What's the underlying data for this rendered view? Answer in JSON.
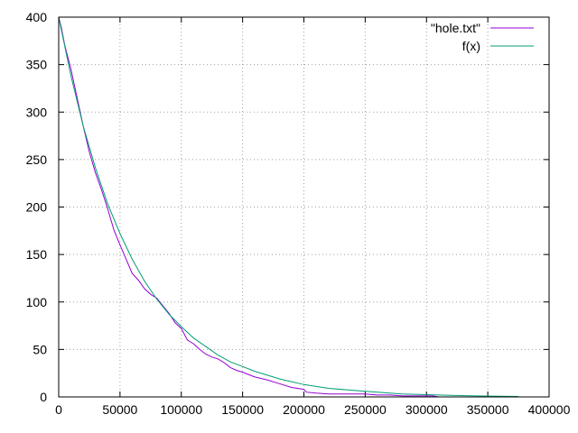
{
  "chart_data": {
    "type": "line",
    "title": "",
    "xlabel": "",
    "ylabel": "",
    "xlim": [
      0,
      400000
    ],
    "ylim": [
      0,
      400
    ],
    "xticks": [
      0,
      50000,
      100000,
      150000,
      200000,
      250000,
      300000,
      350000,
      400000
    ],
    "yticks": [
      0,
      50,
      100,
      150,
      200,
      250,
      300,
      350,
      400
    ],
    "grid": true,
    "legend": "top-right",
    "series": [
      {
        "name": "\"hole.txt\"",
        "color": "#9400d3",
        "x": [
          0,
          2000,
          5000,
          10000,
          15000,
          20000,
          25000,
          30000,
          35000,
          40000,
          45000,
          50000,
          55000,
          60000,
          65000,
          70000,
          75000,
          80000,
          85000,
          90000,
          95000,
          100000,
          105000,
          110000,
          115000,
          120000,
          125000,
          130000,
          135000,
          140000,
          145000,
          150000,
          160000,
          170000,
          180000,
          190000,
          200000,
          202000,
          210000,
          220000,
          230000,
          240000,
          250000,
          260000,
          270000,
          280000,
          290000,
          300000,
          305000,
          310000
        ],
        "y": [
          400,
          390,
          370,
          345,
          315,
          285,
          258,
          236,
          218,
          198,
          176,
          160,
          145,
          130,
          123,
          114,
          108,
          104,
          96,
          88,
          78,
          72,
          60,
          56,
          50,
          45,
          42,
          40,
          36,
          31,
          28,
          26,
          21,
          18,
          14,
          10,
          8,
          5,
          4,
          3,
          3,
          3,
          3,
          2,
          2,
          1,
          1,
          1,
          1,
          0
        ]
      },
      {
        "name": "f(x)",
        "color": "#009e73",
        "x": [
          0,
          10000,
          20000,
          30000,
          40000,
          50000,
          60000,
          70000,
          80000,
          90000,
          100000,
          110000,
          120000,
          130000,
          140000,
          150000,
          160000,
          180000,
          200000,
          220000,
          250000,
          280000,
          310000,
          340000,
          375000
        ],
        "y": [
          400,
          338,
          285,
          241,
          203,
          172,
          145,
          122,
          103,
          87,
          74,
          62,
          53,
          44,
          37,
          32,
          27,
          19,
          13,
          9,
          6,
          3,
          2,
          1,
          0.5
        ]
      }
    ]
  }
}
